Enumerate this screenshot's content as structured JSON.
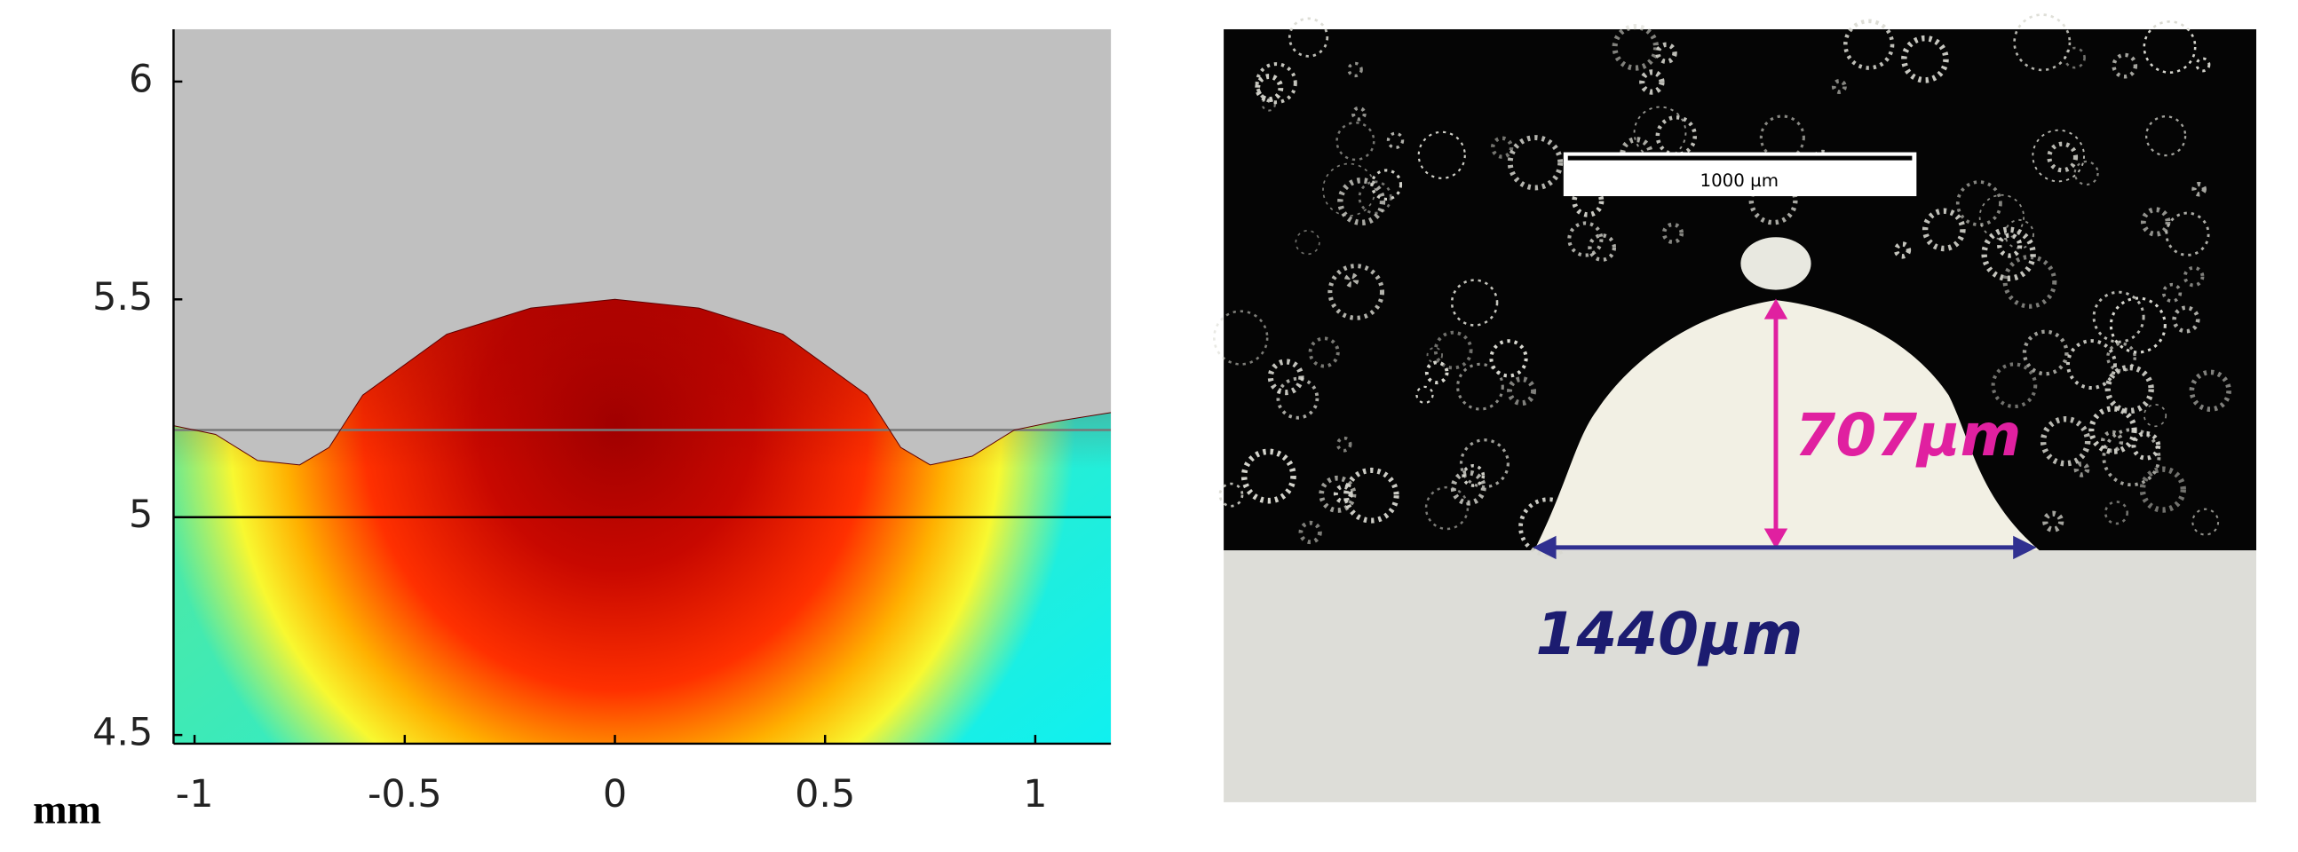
{
  "chart_data": {
    "type": "field",
    "x_label": "mm",
    "xlim": [
      -1.05,
      1.18
    ],
    "xticks": [
      -1,
      -0.5,
      0,
      0.5,
      1
    ],
    "ylim": [
      4.48,
      6.12
    ],
    "yticks": [
      4.5,
      5,
      5.5,
      6
    ],
    "reference_lines": [
      {
        "value": 5,
        "color": "#000000"
      },
      {
        "value": 5.2,
        "color": "#777777"
      }
    ],
    "surface": {
      "x": [
        -1.05,
        -0.95,
        -0.85,
        -0.75,
        -0.68,
        -0.6,
        -0.4,
        -0.2,
        0,
        0.2,
        0.4,
        0.6,
        0.68,
        0.75,
        0.85,
        0.95,
        1.05,
        1.18
      ],
      "y": [
        5.21,
        5.19,
        5.13,
        5.12,
        5.16,
        5.28,
        5.42,
        5.48,
        5.5,
        5.48,
        5.42,
        5.28,
        5.16,
        5.12,
        5.14,
        5.2,
        5.22,
        5.24
      ]
    }
  },
  "micrograph": {
    "scale_bar": "1000 µm",
    "height": "707μm",
    "width": "1440μm"
  }
}
